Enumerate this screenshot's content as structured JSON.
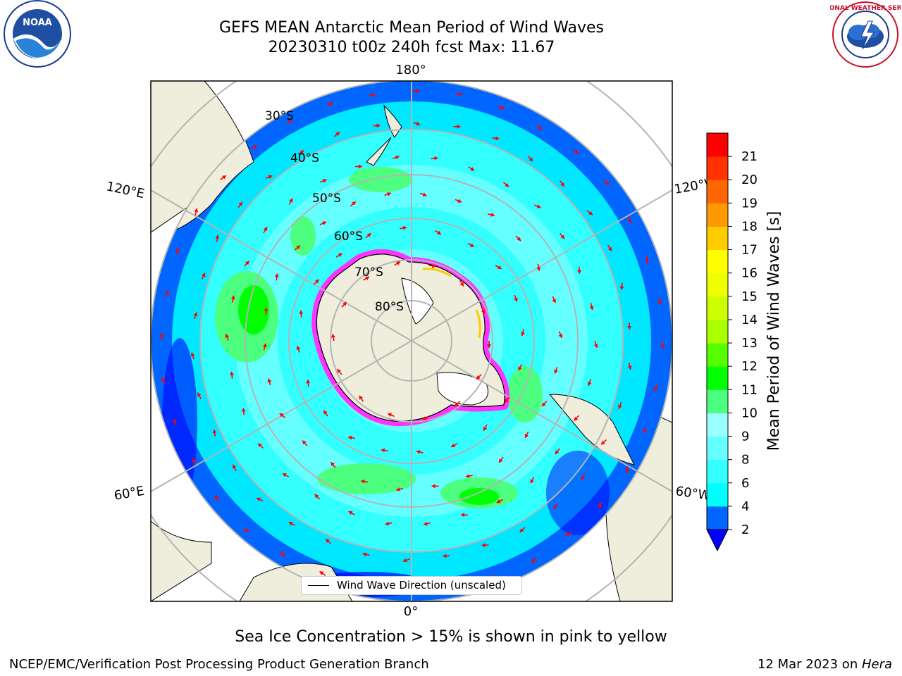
{
  "title": {
    "line1": "GEFS MEAN Antarctic Mean Period of Wind Waves",
    "line2": "20230310 t00z 240h fcst   Max: 11.67"
  },
  "map": {
    "projection": "south-polar-stereographic",
    "longitude_labels": {
      "top": "180°",
      "bottom": "0°",
      "upper_left": "120°E",
      "upper_right": "120°W",
      "lower_left": "60°E",
      "lower_right": "60°W"
    },
    "latitude_labels": [
      "30°S",
      "40°S",
      "50°S",
      "60°S",
      "70°S",
      "80°S"
    ],
    "legend_label": "Wind Wave Direction (unscaled)",
    "colors": {
      "land": "#efeddb",
      "sea_ice": "#ff33ff",
      "arrows": "#ff0000",
      "graticule": "#b4b4b4"
    }
  },
  "colorbar": {
    "label": "Mean Period of Wind Waves [s]",
    "ticks": [
      "2",
      "4",
      "6",
      "8",
      "9",
      "10",
      "11",
      "12",
      "13",
      "14",
      "15",
      "16",
      "17",
      "18",
      "19",
      "20",
      "21"
    ],
    "extend": "min",
    "colors": [
      "#0066ff",
      "#00ffff",
      "#33ffff",
      "#66ffff",
      "#99ffff",
      "#4cff7f",
      "#00ff00",
      "#55ff00",
      "#aaff00",
      "#ccff00",
      "#eeff00",
      "#ffff00",
      "#ffcc00",
      "#ff9900",
      "#ff6600",
      "#ff3300",
      "#ff0000"
    ],
    "under_color": "#0000ff"
  },
  "sea_ice_note": "Sea Ice Concentration > 15% is shown in pink to yellow",
  "footer": {
    "left": "NCEP/EMC/Verification Post Processing Product Generation Branch",
    "right_date": "12 Mar 2023 on ",
    "right_machine": "Hera"
  },
  "logos": {
    "left": "NOAA",
    "right": "NATIONAL WEATHER SERVICE"
  }
}
